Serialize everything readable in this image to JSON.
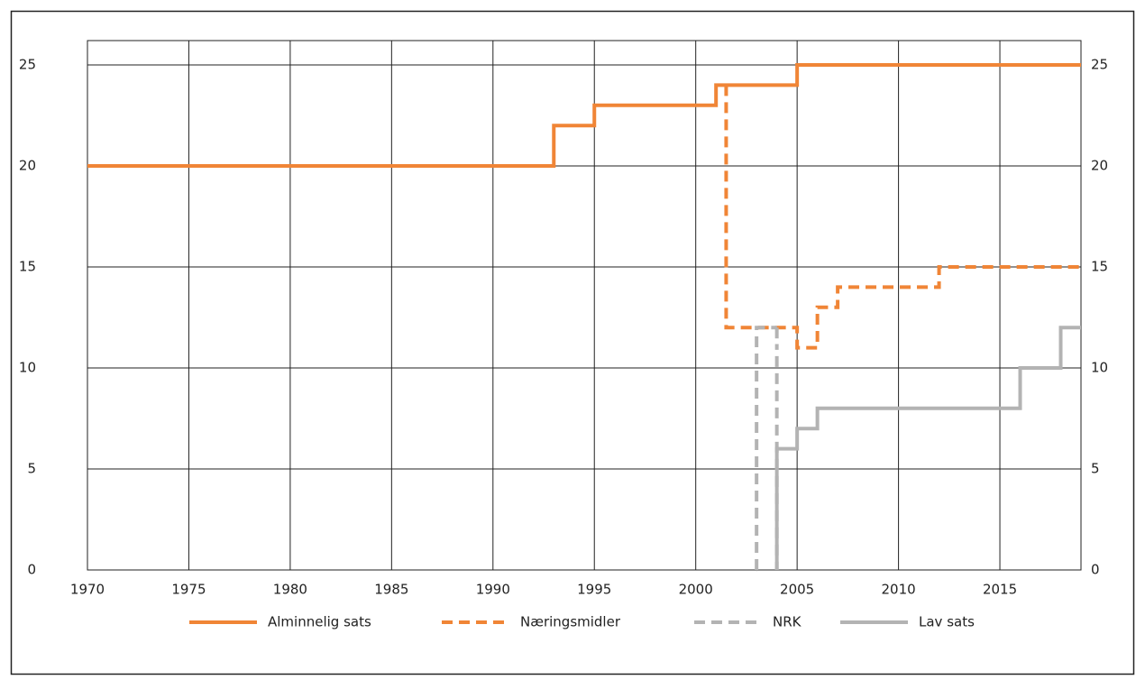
{
  "chart_data": {
    "type": "line",
    "step": "post",
    "xlim": [
      1970,
      2019
    ],
    "xticks": [
      1970,
      1975,
      1980,
      1985,
      1990,
      1995,
      2000,
      2005,
      2010,
      2015
    ],
    "ylim": [
      0,
      25
    ],
    "yticks": [
      0,
      5,
      10,
      15,
      20,
      25
    ],
    "y2lim": [
      0,
      25
    ],
    "y2ticks": [
      0,
      5,
      10,
      15,
      20,
      25
    ],
    "grid": true,
    "legend": "bottom",
    "series": [
      {
        "name": "Alminnelig sats",
        "color": "#f08536",
        "dash": false,
        "x": [
          1970,
          1993,
          1995,
          2001,
          2005,
          2019
        ],
        "values": [
          20,
          22,
          23,
          24,
          25,
          25
        ]
      },
      {
        "name": "Næringsmidler",
        "color": "#f08536",
        "dash": true,
        "x": [
          2001.5,
          2001.5,
          2005,
          2006,
          2007,
          2012,
          2019
        ],
        "values": [
          24,
          12,
          11,
          13,
          14,
          15,
          15
        ]
      },
      {
        "name": "NRK",
        "color": "#b3b3b3",
        "dash": true,
        "x": [
          2003,
          2003,
          2004,
          2004
        ],
        "values": [
          0,
          12,
          12,
          0
        ]
      },
      {
        "name": "Lav sats",
        "color": "#b3b3b3",
        "dash": false,
        "x": [
          2004,
          2004,
          2005,
          2006,
          2016,
          2018,
          2019
        ],
        "values": [
          0,
          6,
          7,
          8,
          10,
          12,
          12
        ]
      }
    ]
  }
}
